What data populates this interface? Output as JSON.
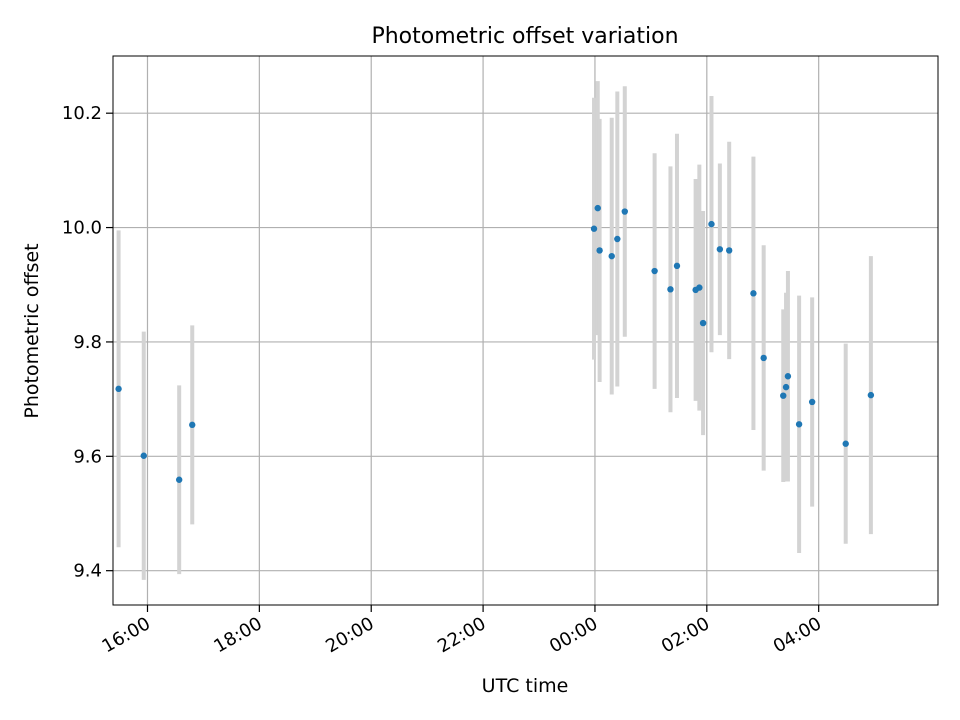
{
  "chart_data": {
    "type": "scatter",
    "title": "Photometric offset variation",
    "xlabel": "UTC time",
    "ylabel": "Photometric offset",
    "x_unit": "time of day (UTC), spanning midnight",
    "xlim": [
      "15:23",
      "30:08"
    ],
    "ylim": [
      9.34,
      10.3
    ],
    "grid": true,
    "x_ticks": [
      "16:00",
      "18:00",
      "20:00",
      "22:00",
      "00:00",
      "02:00",
      "04:00"
    ],
    "y_ticks": [
      "9.4",
      "9.6",
      "9.8",
      "10.0",
      "10.2"
    ],
    "series": [
      {
        "marker_color": "#1f77b4",
        "errorbar_color": "#d3d3d3",
        "points": [
          {
            "x": "15:29",
            "y": 9.718,
            "yerr": 0.277
          },
          {
            "x": "15:56",
            "y": 9.601,
            "yerr": 0.217
          },
          {
            "x": "16:34",
            "y": 9.559,
            "yerr": 0.165
          },
          {
            "x": "16:48",
            "y": 9.655,
            "yerr": 0.174
          },
          {
            "x": "23:59",
            "y": 9.998,
            "yerr": 0.229
          },
          {
            "x": "00:03",
            "y": 10.034,
            "yerr": 0.222
          },
          {
            "x": "00:05",
            "y": 9.96,
            "yerr": 0.23
          },
          {
            "x": "00:18",
            "y": 9.95,
            "yerr": 0.242
          },
          {
            "x": "00:24",
            "y": 9.98,
            "yerr": 0.258
          },
          {
            "x": "00:32",
            "y": 10.028,
            "yerr": 0.219
          },
          {
            "x": "01:04",
            "y": 9.924,
            "yerr": 0.206
          },
          {
            "x": "01:21",
            "y": 9.892,
            "yerr": 0.215
          },
          {
            "x": "01:28",
            "y": 9.933,
            "yerr": 0.231
          },
          {
            "x": "01:48",
            "y": 9.891,
            "yerr": 0.194
          },
          {
            "x": "01:52",
            "y": 9.895,
            "yerr": 0.215
          },
          {
            "x": "01:56",
            "y": 9.833,
            "yerr": 0.196
          },
          {
            "x": "02:05",
            "y": 10.006,
            "yerr": 0.224
          },
          {
            "x": "02:14",
            "y": 9.962,
            "yerr": 0.15
          },
          {
            "x": "02:24",
            "y": 9.96,
            "yerr": 0.19
          },
          {
            "x": "02:50",
            "y": 9.885,
            "yerr": 0.239
          },
          {
            "x": "03:01",
            "y": 9.772,
            "yerr": 0.197
          },
          {
            "x": "03:22",
            "y": 9.706,
            "yerr": 0.151
          },
          {
            "x": "03:25",
            "y": 9.721,
            "yerr": 0.165
          },
          {
            "x": "03:27",
            "y": 9.74,
            "yerr": 0.184
          },
          {
            "x": "03:39",
            "y": 9.656,
            "yerr": 0.225
          },
          {
            "x": "03:53",
            "y": 9.695,
            "yerr": 0.183
          },
          {
            "x": "04:29",
            "y": 9.622,
            "yerr": 0.175
          },
          {
            "x": "04:56",
            "y": 9.707,
            "yerr": 0.243
          }
        ]
      }
    ]
  }
}
